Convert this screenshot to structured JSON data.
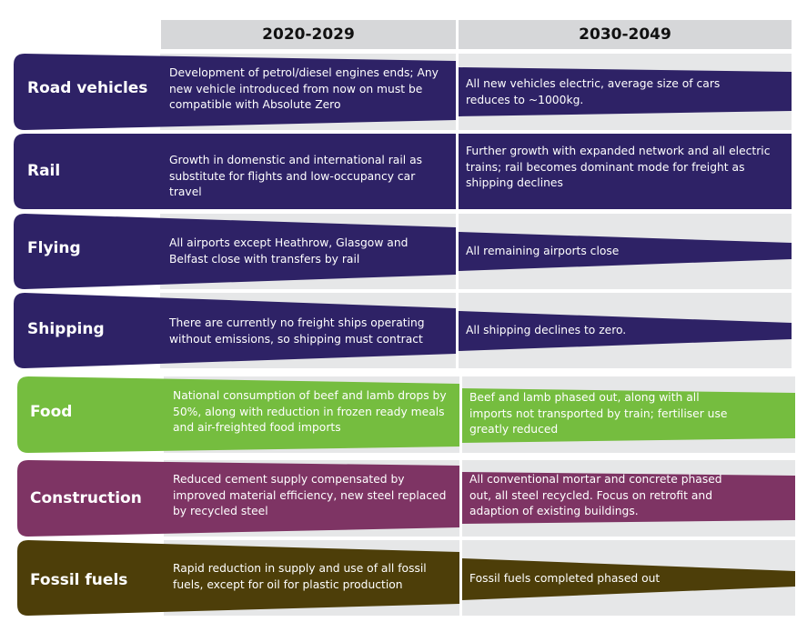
{
  "headers": {
    "col1": "2020-2029",
    "col2": "2030-2049"
  },
  "colors": {
    "transport": "#2e2266",
    "food": "#75bd3f",
    "construction": "#7e3464",
    "fossil": "#4d3e09",
    "cell_bg": "#e6e7e8",
    "header_bg": "#d6d7d9"
  },
  "rows": [
    {
      "label": "Road vehicles",
      "text_2020": "Development of petrol/diesel engines ends; Any new vehicle introduced from now on must be compatible with Absolute Zero",
      "text_2030": "All new vehicles electric, average size of cars reduces to ~1000kg."
    },
    {
      "label": "Rail",
      "text_2020": "Growth in domenstic and international rail as substitute for flights and low-occupancy car travel",
      "text_2030": "Further growth with expanded network and all electric trains; rail becomes dominant mode for freight as shipping declines"
    },
    {
      "label": "Flying",
      "text_2020": "All airports except Heathrow, Glasgow and Belfast close with transfers by rail",
      "text_2030": "All remaining airports close"
    },
    {
      "label": "Shipping",
      "text_2020": "There are currently no freight ships operating without emissions, so shipping must contract",
      "text_2030": "All shipping declines to zero."
    },
    {
      "label": "Food",
      "text_2020": "National consumption of beef and lamb drops by 50%, along with reduction in frozen ready meals and air-freighted food imports",
      "text_2030": "Beef and lamb phased out, along with all imports not transported by train; fertiliser use greatly reduced"
    },
    {
      "label": "Construction",
      "text_2020": "Reduced cement supply compensated by improved material efficiency, new steel replaced by recycled steel",
      "text_2030": "All conventional mortar and concrete phased out, all steel recycled. Focus on retrofit and adaption of existing buildings."
    },
    {
      "label": "Fossil fuels",
      "text_2020": "Rapid reduction in supply and use of all fossil fuels, except for oil for plastic production",
      "text_2030": "Fossil fuels completed phased out"
    }
  ]
}
